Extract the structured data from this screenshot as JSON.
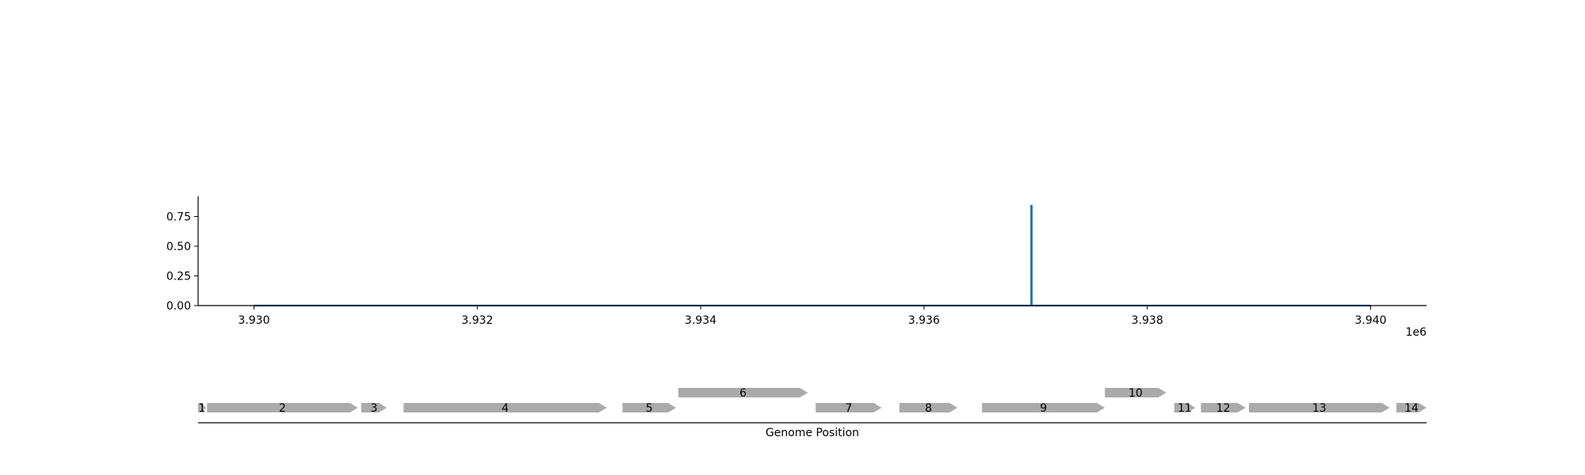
{
  "chart_data": [
    {
      "type": "line",
      "title": "",
      "xlabel": "",
      "ylabel": "",
      "x_offset_label": "1e6",
      "xlim": [
        3929500,
        3940500
      ],
      "ylim": [
        0,
        0.92
      ],
      "x_ticks": [
        3930000,
        3932000,
        3934000,
        3936000,
        3938000,
        3940000
      ],
      "x_tick_labels": [
        "3.930",
        "3.932",
        "3.934",
        "3.936",
        "3.938",
        "3.940"
      ],
      "y_ticks": [
        0,
        0.25,
        0.5,
        0.75
      ],
      "y_tick_labels": [
        "0.00",
        "0.25",
        "0.50",
        "0.75"
      ],
      "grid": false,
      "series": [
        {
          "color": "#1f77b4",
          "points": [
            [
              3930000,
              0
            ],
            [
              3936960,
              0
            ],
            [
              3936960,
              0.84
            ],
            [
              3936965,
              0.84
            ],
            [
              3936965,
              0
            ],
            [
              3940000,
              0
            ]
          ]
        }
      ]
    },
    {
      "type": "gene-map",
      "xlabel": "Genome Position",
      "xlim": [
        3929500,
        3940500
      ],
      "color": "#aaaaaa",
      "genes": [
        {
          "label": "1",
          "start": 3929500,
          "end": 3929570,
          "row": 0
        },
        {
          "label": "2",
          "start": 3929580,
          "end": 3930930,
          "row": 0
        },
        {
          "label": "3",
          "start": 3930960,
          "end": 3931190,
          "row": 0
        },
        {
          "label": "4",
          "start": 3931340,
          "end": 3933160,
          "row": 0
        },
        {
          "label": "5",
          "start": 3933300,
          "end": 3933780,
          "row": 0
        },
        {
          "label": "6",
          "start": 3933800,
          "end": 3934960,
          "row": 1
        },
        {
          "label": "7",
          "start": 3935030,
          "end": 3935620,
          "row": 0
        },
        {
          "label": "8",
          "start": 3935780,
          "end": 3936300,
          "row": 0
        },
        {
          "label": "9",
          "start": 3936520,
          "end": 3937620,
          "row": 0
        },
        {
          "label": "10",
          "start": 3937620,
          "end": 3938170,
          "row": 1
        },
        {
          "label": "11",
          "start": 3938240,
          "end": 3938430,
          "row": 0
        },
        {
          "label": "12",
          "start": 3938480,
          "end": 3938880,
          "row": 0
        },
        {
          "label": "13",
          "start": 3938910,
          "end": 3940170,
          "row": 0
        },
        {
          "label": "14",
          "start": 3940230,
          "end": 3940500,
          "row": 0
        }
      ]
    }
  ]
}
